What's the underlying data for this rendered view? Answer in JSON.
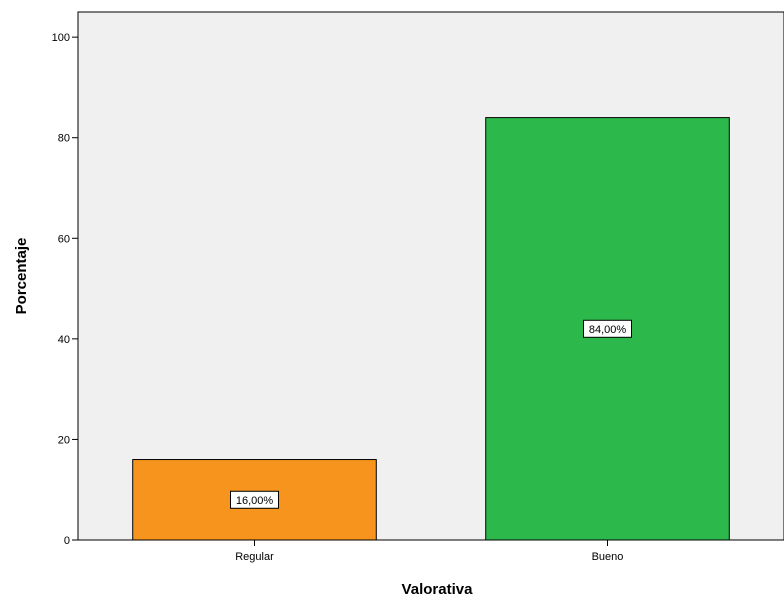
{
  "chart_data": {
    "type": "bar",
    "title": "",
    "xlabel": "Valorativa",
    "ylabel": "Porcentaje",
    "categories": [
      "Regular",
      "Bueno"
    ],
    "values": [
      16,
      84
    ],
    "data_labels": [
      "16,00%",
      "84,00%"
    ],
    "ylim": [
      0,
      105
    ],
    "yticks": [
      0,
      20,
      40,
      60,
      80,
      100
    ],
    "ytick_labels": [
      "0",
      "20",
      "40",
      "60",
      "80",
      "100"
    ],
    "bar_colors": [
      "#f7941d",
      "#2db84b"
    ],
    "plot_background": "#f0f0f0",
    "grid": false,
    "legend": "none"
  }
}
